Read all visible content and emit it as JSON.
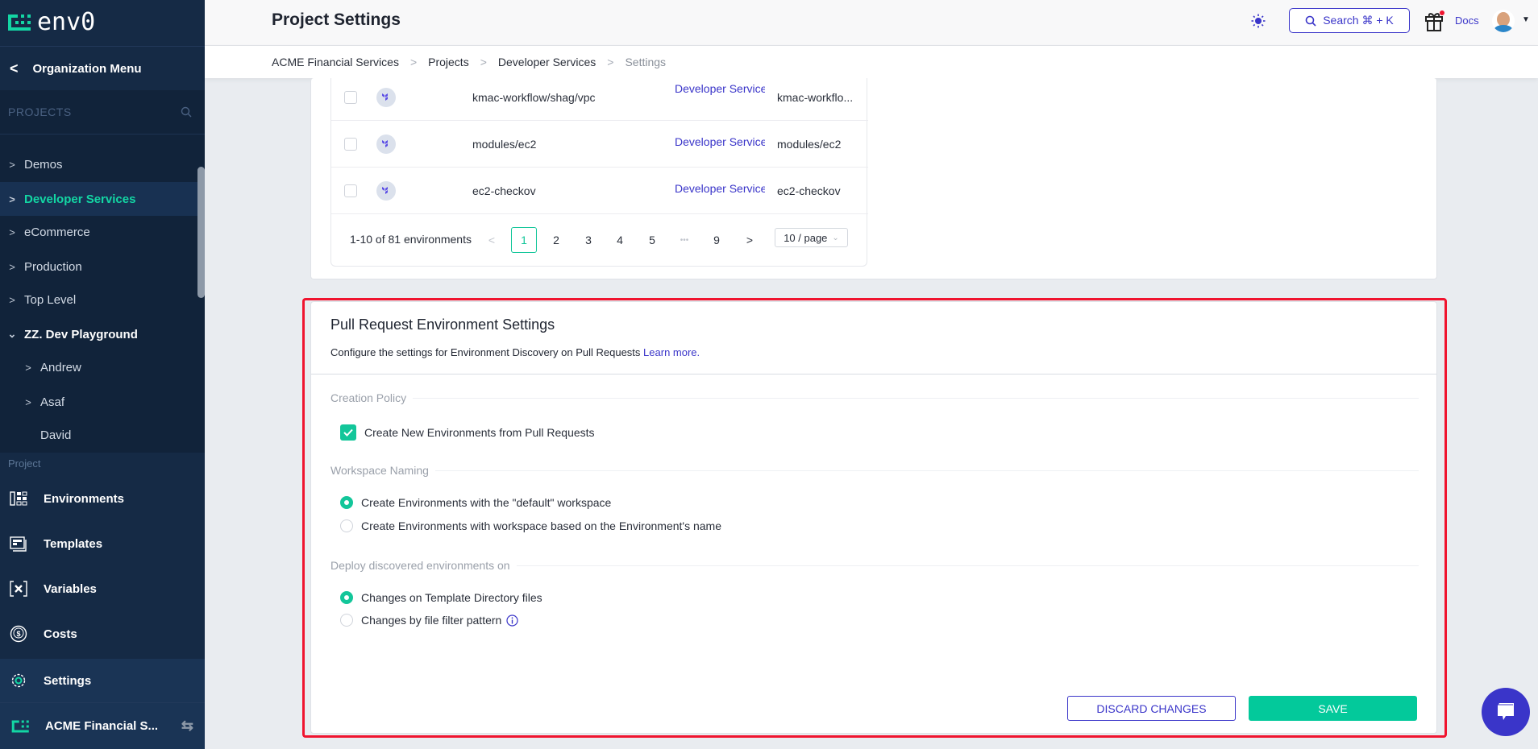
{
  "app": {
    "logo_text": "env0",
    "accent": "#13d6a4",
    "brand_blue": "#3a35c9"
  },
  "sidebar": {
    "org_menu_label": "Organization Menu",
    "projects_header": "PROJECTS",
    "projects": [
      {
        "label": "Demos",
        "expandable": true
      },
      {
        "label": "Developer Services",
        "expandable": true,
        "active": true
      },
      {
        "label": "eCommerce",
        "expandable": true
      },
      {
        "label": "Production",
        "expandable": true
      },
      {
        "label": "Top Level",
        "expandable": true
      },
      {
        "label": "ZZ. Dev Playground",
        "expanded": true
      },
      {
        "label": "Andrew",
        "expandable": true,
        "child": true
      },
      {
        "label": "Asaf",
        "expandable": true,
        "child": true
      },
      {
        "label": "David",
        "child": true
      }
    ],
    "section_label": "Project",
    "nav": [
      {
        "label": "Environments",
        "icon": "environments-icon"
      },
      {
        "label": "Templates",
        "icon": "templates-icon"
      },
      {
        "label": "Variables",
        "icon": "variables-icon"
      },
      {
        "label": "Costs",
        "icon": "costs-icon"
      },
      {
        "label": "Settings",
        "icon": "settings-icon",
        "active": true
      }
    ],
    "org_name": "ACME Financial S..."
  },
  "header": {
    "title": "Project Settings",
    "search_label": "Search ⌘ + K",
    "docs_label": "Docs"
  },
  "breadcrumb": [
    "ACME Financial Services",
    "Projects",
    "Developer Services",
    "Settings"
  ],
  "environments_table": {
    "rows": [
      {
        "name": "kmac-workflow/shag/vpc",
        "project": "Developer Service",
        "path": "kmac-workflo..."
      },
      {
        "name": "modules/ec2",
        "project": "Developer Service",
        "path": "modules/ec2"
      },
      {
        "name": "ec2-checkov",
        "project": "Developer Service",
        "path": "ec2-checkov"
      }
    ],
    "pagination": {
      "summary": "1-10 of 81 environments",
      "pages": [
        "1",
        "2",
        "3",
        "4",
        "5",
        "•••",
        "9"
      ],
      "current": "1",
      "page_size": "10 / page"
    }
  },
  "pr_settings": {
    "title": "Pull Request Environment Settings",
    "description": "Configure the settings for Environment Discovery on Pull Requests",
    "learn_more": "Learn more.",
    "creation_policy": {
      "legend": "Creation Policy",
      "checkbox_label": "Create New Environments from Pull Requests",
      "checked": true
    },
    "workspace_naming": {
      "legend": "Workspace Naming",
      "options": [
        "Create Environments with the \"default\" workspace",
        "Create Environments with workspace based on the Environment's name"
      ],
      "selected": 0
    },
    "deploy_on": {
      "legend": "Deploy discovered environments on",
      "options": [
        "Changes on Template Directory files",
        "Changes by file filter pattern"
      ],
      "selected": 0
    },
    "discard_label": "DISCARD CHANGES",
    "save_label": "SAVE"
  }
}
